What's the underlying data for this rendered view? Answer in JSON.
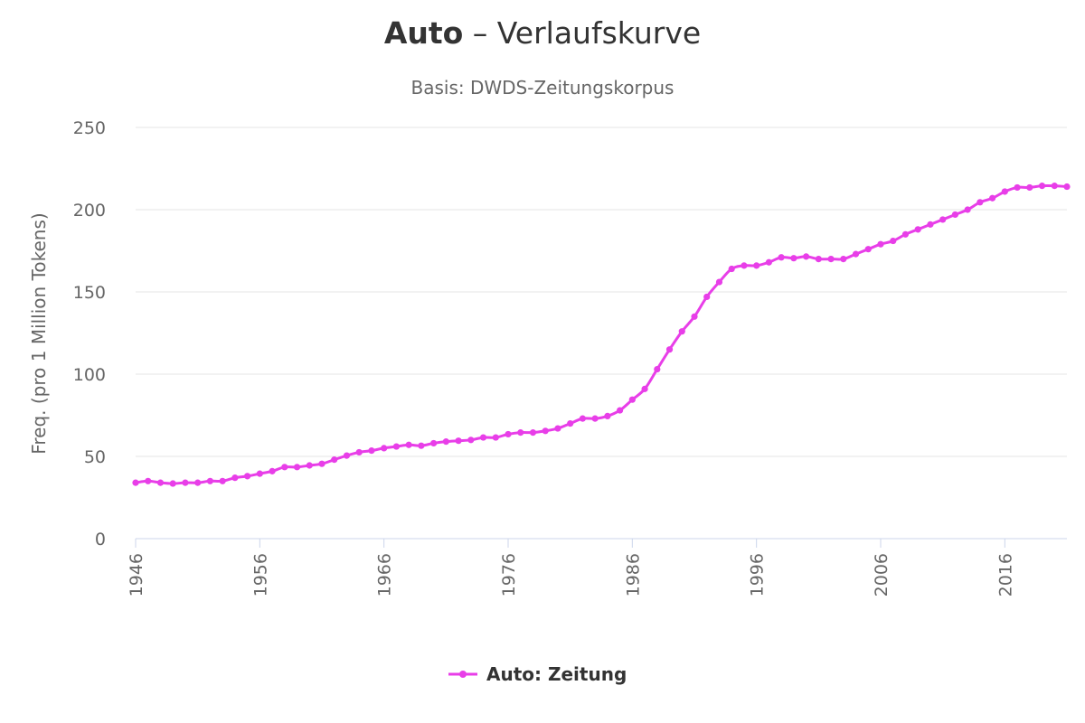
{
  "chart_data": {
    "type": "line",
    "title_keyword": "Auto",
    "title_rest": " – Verlaufskurve",
    "subtitle": "Basis: DWDS-Zeitungskorpus",
    "xlabel": "",
    "ylabel": "Freq. (pro 1 Million Tokens)",
    "xlim": [
      1946,
      2021
    ],
    "ylim": [
      0,
      250
    ],
    "x_ticks": [
      "1946",
      "1956",
      "1966",
      "1976",
      "1986",
      "1996",
      "2006",
      "2016"
    ],
    "y_ticks": [
      "0",
      "50",
      "100",
      "150",
      "200",
      "250"
    ],
    "grid": true,
    "legend_position": "bottom-center",
    "series": [
      {
        "name": "Auto: Zeitung",
        "color": "#e83ee8",
        "x": [
          1946,
          1947,
          1948,
          1949,
          1950,
          1951,
          1952,
          1953,
          1954,
          1955,
          1956,
          1957,
          1958,
          1959,
          1960,
          1961,
          1962,
          1963,
          1964,
          1965,
          1966,
          1967,
          1968,
          1969,
          1970,
          1971,
          1972,
          1973,
          1974,
          1975,
          1976,
          1977,
          1978,
          1979,
          1980,
          1981,
          1982,
          1983,
          1984,
          1985,
          1986,
          1987,
          1988,
          1989,
          1990,
          1991,
          1992,
          1993,
          1994,
          1995,
          1996,
          1997,
          1998,
          1999,
          2000,
          2001,
          2002,
          2003,
          2004,
          2005,
          2006,
          2007,
          2008,
          2009,
          2010,
          2011,
          2012,
          2013,
          2014,
          2015,
          2016,
          2017,
          2018,
          2019,
          2020,
          2021
        ],
        "y": [
          34,
          35,
          34,
          33.5,
          34,
          34,
          35,
          35,
          37,
          38,
          39.5,
          41,
          43.5,
          43.5,
          44.5,
          45.5,
          48,
          50.5,
          52.5,
          53.5,
          55,
          56,
          57,
          56.5,
          58,
          59,
          59.5,
          60,
          61.5,
          61.5,
          63.5,
          64.5,
          64.5,
          65.5,
          67,
          70,
          73,
          73,
          74.5,
          78,
          84.5,
          91,
          103,
          115,
          126,
          135,
          147,
          156,
          164,
          166,
          166,
          168,
          171,
          170.5,
          171.5,
          170,
          170,
          170,
          173,
          176,
          179,
          181,
          185,
          188,
          191,
          194,
          197,
          200,
          204.5,
          207,
          211,
          213.5,
          213.5,
          214.5,
          214.5,
          214
        ]
      }
    ]
  }
}
